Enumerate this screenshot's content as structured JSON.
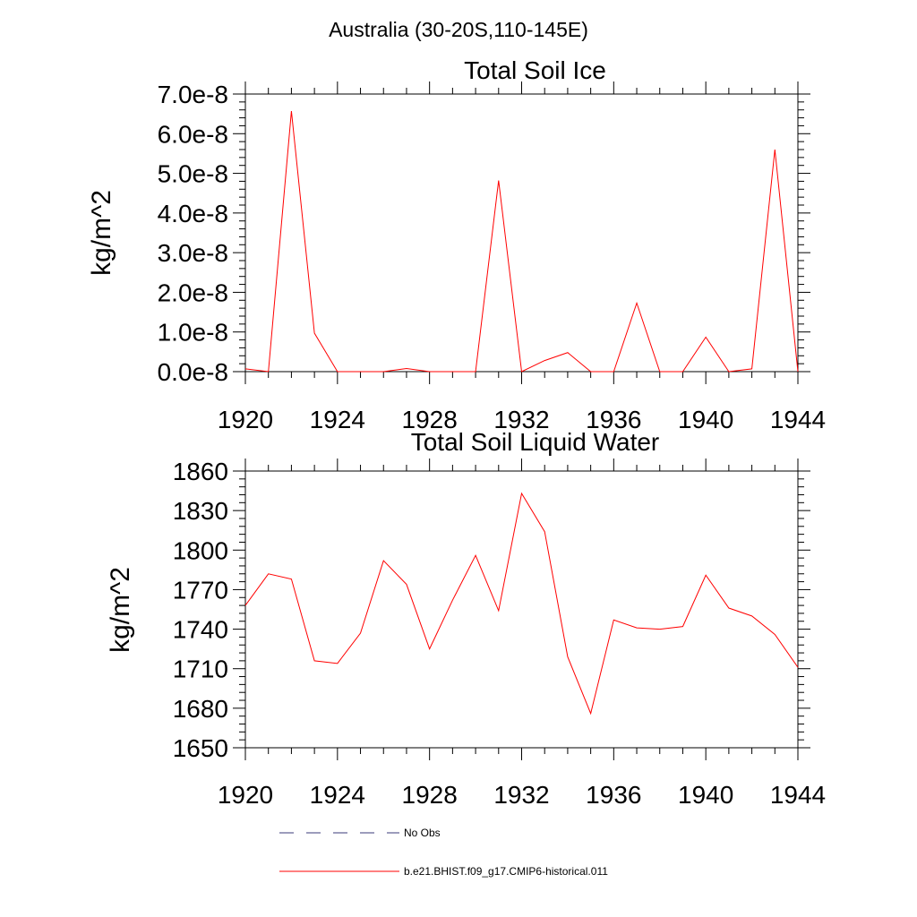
{
  "figure": {
    "suptitle": "Australia (30-20S,110-145E)"
  },
  "chart_data": [
    {
      "type": "line",
      "title": "Total Soil Ice",
      "xlabel": "",
      "ylabel": "kg/m^2",
      "xlim": [
        1920,
        1944
      ],
      "ylim": [
        0,
        7e-08
      ],
      "xticks": [
        1920,
        1924,
        1928,
        1932,
        1936,
        1940,
        1944
      ],
      "yticks": [
        0,
        1e-08,
        2e-08,
        3e-08,
        4e-08,
        5e-08,
        6e-08,
        7e-08
      ],
      "xtick_labels": [
        "1920",
        "1924",
        "1928",
        "1932",
        "1936",
        "1940",
        "1944"
      ],
      "ytick_labels": [
        "0.0e-8",
        "1.0e-8",
        "2.0e-8",
        "3.0e-8",
        "4.0e-8",
        "5.0e-8",
        "6.0e-8",
        "7.0e-8"
      ],
      "grid": false,
      "series": [
        {
          "name": "b.e21.BHIST.f09_g17.CMIP6-historical.011",
          "color": "#ff0000",
          "x": [
            1920,
            1921,
            1922,
            1923,
            1924,
            1925,
            1926,
            1927,
            1928,
            1929,
            1930,
            1931,
            1932,
            1933,
            1934,
            1935,
            1936,
            1937,
            1938,
            1939,
            1940,
            1941,
            1942,
            1943,
            1944
          ],
          "y": [
            7e-10,
            0.0,
            6.57e-08,
            9.7e-09,
            0.0,
            0.0,
            0.0,
            8e-10,
            0.0,
            0.0,
            0.0,
            4.82e-08,
            0.0,
            2.8e-09,
            4.8e-09,
            0.0,
            0.0,
            1.73e-08,
            0.0,
            0.0,
            8.7e-09,
            0.0,
            7e-10,
            5.6e-08,
            0.0
          ]
        }
      ]
    },
    {
      "type": "line",
      "title": "Total Soil Liquid Water",
      "xlabel": "",
      "ylabel": "kg/m^2",
      "xlim": [
        1920,
        1944
      ],
      "ylim": [
        1650,
        1860
      ],
      "xticks": [
        1920,
        1924,
        1928,
        1932,
        1936,
        1940,
        1944
      ],
      "yticks": [
        1650,
        1680,
        1710,
        1740,
        1770,
        1800,
        1830,
        1860
      ],
      "xtick_labels": [
        "1920",
        "1924",
        "1928",
        "1932",
        "1936",
        "1940",
        "1944"
      ],
      "ytick_labels": [
        "1650",
        "1680",
        "1710",
        "1740",
        "1770",
        "1800",
        "1830",
        "1860"
      ],
      "grid": false,
      "series": [
        {
          "name": "b.e21.BHIST.f09_g17.CMIP6-historical.011",
          "color": "#ff0000",
          "x": [
            1920,
            1921,
            1922,
            1923,
            1924,
            1925,
            1926,
            1927,
            1928,
            1929,
            1930,
            1931,
            1932,
            1933,
            1934,
            1935,
            1936,
            1937,
            1938,
            1939,
            1940,
            1941,
            1942,
            1943,
            1944
          ],
          "y": [
            1758,
            1782,
            1778,
            1716,
            1714,
            1737,
            1792,
            1774,
            1725,
            1762,
            1796,
            1754,
            1843,
            1814,
            1719,
            1676,
            1747,
            1741,
            1740,
            1742,
            1781,
            1756,
            1750,
            1736,
            1711
          ]
        }
      ]
    }
  ],
  "legend": {
    "position": "bottom",
    "items": [
      {
        "label": "No Obs",
        "style": "dashed",
        "color": "#3a3a7a"
      },
      {
        "label": "b.e21.BHIST.f09_g17.CMIP6-historical.011",
        "style": "solid",
        "color": "#ff0000"
      }
    ]
  }
}
